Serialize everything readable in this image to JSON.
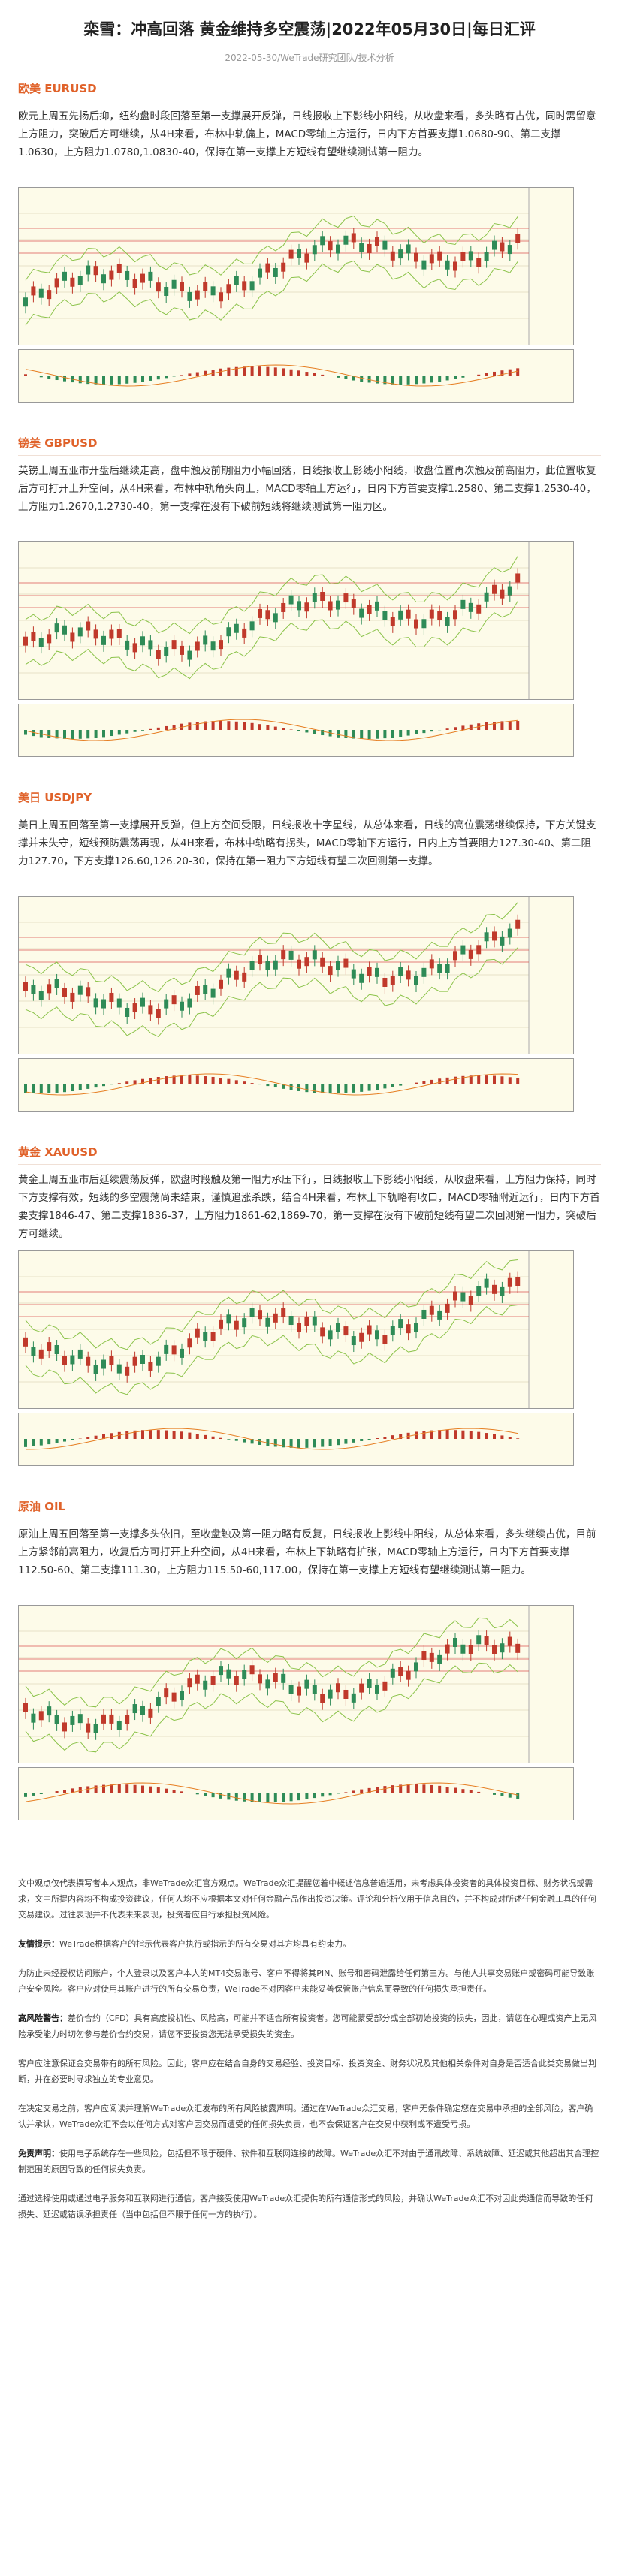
{
  "header": {
    "title": "栾雪：冲高回落 黄金维持多空震荡|2022年05月30日|每日汇评",
    "meta": "2022-05-30/WeTrade研究团队/技术分析"
  },
  "sections": [
    {
      "heading": "欧美 EURUSD",
      "body": "欧元上周五先扬后抑，纽约盘时段回落至第一支撑展开反弹，日线报收上下影线小阳线，从收盘来看，多头略有占优，同时需留意上方阻力，突破后方可继续，从4H来看，布林中轨偏上，MACD零轴上方运行，日内下方首要支撑1.0680-90、第二支撑1.0630，上方阻力1.0780,1.0830-40，保持在第一支撑上方短线有望继续测试第一阻力。"
    },
    {
      "heading": "镑美 GBPUSD",
      "body": "英镑上周五亚市开盘后继续走高，盘中触及前期阻力小幅回落，日线报收上影线小阳线，收盘位置再次触及前高阻力，此位置收复后方可打开上升空间，从4H来看，布林中轨角头向上，MACD零轴上方运行，日内下方首要支撑1.2580、第二支撑1.2530-40，上方阻力1.2670,1.2730-40，第一支撑在没有下破前短线将继续测试第一阻力区。"
    },
    {
      "heading": "美日 USDJPY",
      "body": "美日上周五回落至第一支撑展开反弹，但上方空间受限，日线报收十字星线，从总体来看，日线的高位震荡继续保持，下方关键支撑并未失守，短线预防震荡再现，从4H来看，布林中轨略有拐头，MACD零轴下方运行，日内上方首要阻力127.30-40、第二阻力127.70，下方支撑126.60,126.20-30，保持在第一阻力下方短线有望二次回测第一支撑。"
    },
    {
      "heading": "黄金 XAUUSD",
      "body": "黄金上周五亚市后延续震荡反弹，欧盘时段触及第一阻力承压下行，日线报收上下影线小阳线，从收盘来看，上方阻力保持，同时下方支撑有效，短线的多空震荡尚未结束，谨慎追涨杀跌，结合4H来看，布林上下轨略有收口，MACD零轴附近运行，日内下方首要支撑1846-47、第二支撑1836-37，上方阻力1861-62,1869-70，第一支撑在没有下破前短线有望二次回测第一阻力，突破后方可继续。"
    },
    {
      "heading": "原油 OIL",
      "body": "原油上周五回落至第一支撑多头依旧，至收盘触及第一阻力略有反复，日线报收上影线中阳线，从总体来看，多头继续占优，目前上方紧邻前高阻力，收复后方可打开上升空间，从4H来看，布林上下轨略有扩张，MACD零轴上方运行，日内下方首要支撑112.50-60、第二支撑111.30，上方阻力115.50-60,117.00，保持在第一支撑上方短线有望继续测试第一阻力。"
    }
  ],
  "disclaimer": [
    {
      "text": "文中观点仅代表撰写者本人观点，非WeTrade众汇官方观点。WeTrade众汇提醒您着中概述信息普遍适用，未考虑具体投资者的具体投资目标、财务状况或需求，文中所提内容均不构成投资建议，任何人均不应根据本文对任何金融产品作出投资决策。评论和分析仅用于信息目的，并不构成对所述任何金融工具的任何交易建议。过往表现并不代表未来表现，投资者应自行承担投资风险。"
    },
    {
      "lead": "友情提示：",
      "text": "WeTrade根据客户的指示代表客户执行或指示的所有交易对其方均具有约束力。"
    },
    {
      "text": "为防止未经授权访问账户，个人登录以及客户本人的MT4交易账号、客户不得将其PIN、账号和密码泄露给任何第三方。与他人共享交易账户或密码可能导致账户安全风险。客户应对使用其账户进行的所有交易负责，WeTrade不对因客户未能妥善保管账户信息而导致的任何损失承担责任。"
    },
    {
      "lead": "高风险警告：",
      "text": "差价合约（CFD）具有高度投机性、风险高，可能并不适合所有投资者。您可能蒙受部分或全部初始投资的损失，因此，请您在心理或资产上无风险承受能力时切勿参与差价合约交易，请您不要投资您无法承受损失的资金。"
    },
    {
      "text": "客户应注意保证金交易带有的所有风险。因此，客户应在结合自身的交易经验、投资目标、投资资金、财务状况及其他相关条件对自身是否适合此类交易做出判断，并在必要时寻求独立的专业意见。"
    },
    {
      "text": "在决定交易之前，客户应阅读并理解WeTrade众汇发布的所有风险披露声明。通过在WeTrade众汇交易，客户无条件确定您在交易中承担的全部风险，客户确认并承认，WeTrade众汇不会以任何方式对客户因交易而遭受的任何损失负责，也不会保证客户在交易中获利或不遭受亏损。"
    },
    {
      "lead": "免责声明：",
      "text": "使用电子系统存在一些风险，包括但不限于硬件、软件和互联网连接的故障。WeTrade众汇不对由于通讯故障、系统故障、延迟或其他超出其合理控制范围的原因导致的任何损失负责。"
    },
    {
      "text": "通过选择使用或通过电子服务和互联网进行通信，客户接受使用WeTrade众汇提供的所有通信形式的风险，并确认WeTrade众汇不对因此类通信而导致的任何损失、延迟或错误承担责任（当中包括但不限于任何一方的执行）。"
    }
  ]
}
